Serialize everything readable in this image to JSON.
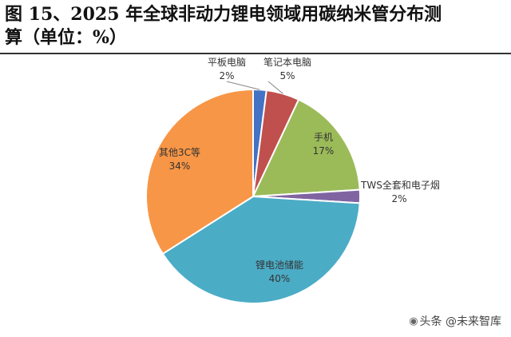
{
  "title": {
    "line1": "图 15、2025 年全球非动力锂电领域用碳纳米管分布测",
    "line2": "算（单位：%）"
  },
  "chart_data": {
    "type": "pie",
    "slices": [
      {
        "label": "平板电脑",
        "value": 2,
        "value_label": "2%",
        "color": "#4472C4"
      },
      {
        "label": "笔记本电脑",
        "value": 5,
        "value_label": "5%",
        "color": "#C0504D"
      },
      {
        "label": "手机",
        "value": 17,
        "value_label": "17%",
        "color": "#9BBB59"
      },
      {
        "label": "TWS全套和电子烟",
        "value": 2,
        "value_label": "2%",
        "color": "#8064A2"
      },
      {
        "label": "锂电池储能",
        "value": 40,
        "value_label": "40%",
        "color": "#4BACC6"
      },
      {
        "label": "其他3C等",
        "value": 34,
        "value_label": "34%",
        "color": "#F79646"
      }
    ]
  },
  "watermark": {
    "text": "头条 @未来智库",
    "icon": "wechat-icon"
  }
}
